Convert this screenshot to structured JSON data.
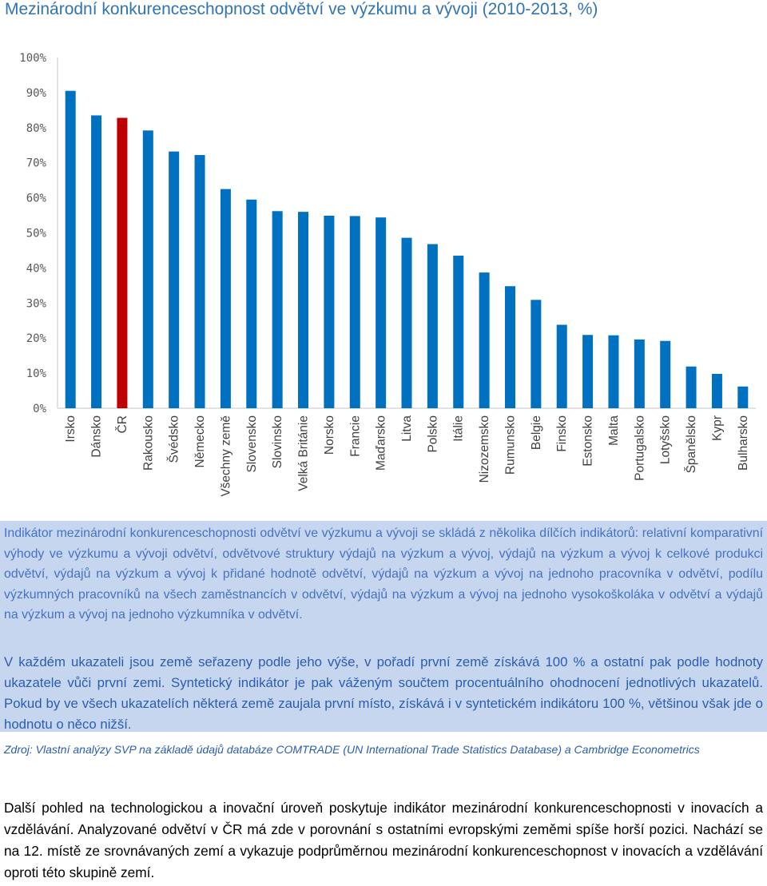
{
  "chart_data": {
    "type": "bar",
    "title": "Mezinárodní konkurenceschopnost odvětví ve výzkumu a vývoji (2010-2013, %)",
    "categories": [
      "Irsko",
      "Dánsko",
      "ČR",
      "Rakousko",
      "Švédsko",
      "Německo",
      "Všechny země",
      "Slovensko",
      "Slovinsko",
      "Velká Británie",
      "Norsko",
      "Francie",
      "Maďarsko",
      "Litva",
      "Polsko",
      "Itálie",
      "Nizozemsko",
      "Rumunsko",
      "Belgie",
      "Finsko",
      "Estonsko",
      "Malta",
      "Portugalsko",
      "Lotyšsko",
      "Španělsko",
      "Kypr",
      "Bulharsko"
    ],
    "values": [
      90.5,
      83.5,
      82.8,
      79.2,
      73.2,
      72.2,
      62.5,
      59.5,
      56.2,
      56.0,
      54.9,
      54.8,
      54.4,
      48.6,
      46.8,
      43.5,
      38.7,
      34.8,
      30.9,
      23.8,
      20.9,
      20.8,
      19.6,
      19.2,
      11.9,
      9.8,
      6.2
    ],
    "ytick_labels": [
      "0%",
      "10%",
      "20%",
      "30%",
      "40%",
      "50%",
      "60%",
      "70%",
      "80%",
      "90%",
      "100%"
    ],
    "ylim": [
      0,
      100
    ],
    "xlabel": "",
    "ylabel": "",
    "grid": false,
    "highlight_category": "ČR",
    "colors": {
      "bar": "#0070c0",
      "highlight": "#c00000",
      "axis": "#d9d9d9"
    }
  },
  "note": {
    "paragraph1": "Indikátor mezinárodní konkurenceschopnosti odvětví ve výzkumu a vývoji se skládá z několika dílčích indikátorů: relativní komparativní výhody ve výzkumu a vývoji odvětví, odvětvové struktury výdajů na výzkum a vývoj, výdajů na výzkum a vývoj k celkové produkci odvětví, výdajů na výzkum a vývoj k přidané hodnotě odvětví, výdajů na výzkum a vývoj na jednoho pracovníka v odvětví, podílu výzkumných pracovníků na všech zaměstnancích v odvětví, výdajů na výzkum a vývoj na jednoho vysokoškoláka v odvětví a výdajů na výzkum a vývoj na jednoho výzkumníka v odvětví.",
    "paragraph2": "V každém ukazateli jsou země seřazeny podle jeho výše, v pořadí první země získává 100 % a ostatní pak podle hodnoty ukazatele vůči první zemi. Syntetický indikátor je pak váženým součtem procentuálního ohodnocení jednotlivých ukazatelů. Pokud by ve všech ukazatelích některá země zaujala první místo, získává i v syntetickém indikátoru 100 %, většinou však jde o hodnotu o něco nižší."
  },
  "source": "Zdroj: Vlastní analýzy SVP na základě údajů databáze COMTRADE (UN International Trade Statistics Database) a Cambridge Econometrics",
  "body_text": "Další pohled na technologickou a inovační úroveň poskytuje indikátor mezinárodní konkurenceschopnosti v inovacích a vzdělávání. Analyzované odvětví v ČR má zde v porovnání s ostatními evropskými zeměmi spíše horší pozici. Nachází se na 12. místě ze srovnávaných zemí a vykazuje podprůměrnou mezinárodní konkurenceschopnost v inovacích a vzdělávání oproti této skupině zemí."
}
